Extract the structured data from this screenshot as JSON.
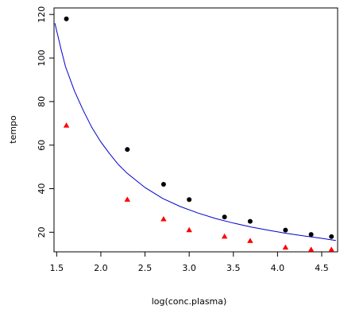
{
  "chart_data": {
    "type": "scatter",
    "title": "",
    "xlabel": "log(conc.plasma)",
    "ylabel": "tempo",
    "xlim": [
      1.47,
      4.68
    ],
    "ylim": [
      11,
      123
    ],
    "x_ticks": [
      "1.5",
      "2.0",
      "2.5",
      "3.0",
      "3.5",
      "4.0",
      "4.5"
    ],
    "y_ticks": [
      "20",
      "40",
      "60",
      "80",
      "100",
      "120"
    ],
    "grid": false,
    "legend": "none",
    "x": [
      1.61,
      2.3,
      2.71,
      3.0,
      3.4,
      3.69,
      4.09,
      4.38,
      4.61
    ],
    "series": [
      {
        "marker": "circle",
        "color": "#000000",
        "values": [
          118,
          58,
          42,
          35,
          27,
          25,
          21,
          19,
          18
        ]
      },
      {
        "marker": "triangle",
        "color": "#ff0000",
        "values": [
          69,
          35,
          26,
          21,
          18,
          16,
          13,
          12,
          12
        ]
      }
    ],
    "curve": {
      "color": "#0000cc",
      "x": [
        1.48,
        1.55,
        1.6,
        1.7,
        1.8,
        1.9,
        2.0,
        2.1,
        2.2,
        2.3,
        2.5,
        2.7,
        2.9,
        3.1,
        3.3,
        3.5,
        3.7,
        3.9,
        4.1,
        4.3,
        4.5,
        4.66
      ],
      "y": [
        116,
        104,
        96,
        85,
        76,
        68,
        61.5,
        56,
        51,
        47,
        40.5,
        35.5,
        31.8,
        28.8,
        26.3,
        24.2,
        22.4,
        20.9,
        19.5,
        18.3,
        17.2,
        16.2
      ]
    }
  }
}
